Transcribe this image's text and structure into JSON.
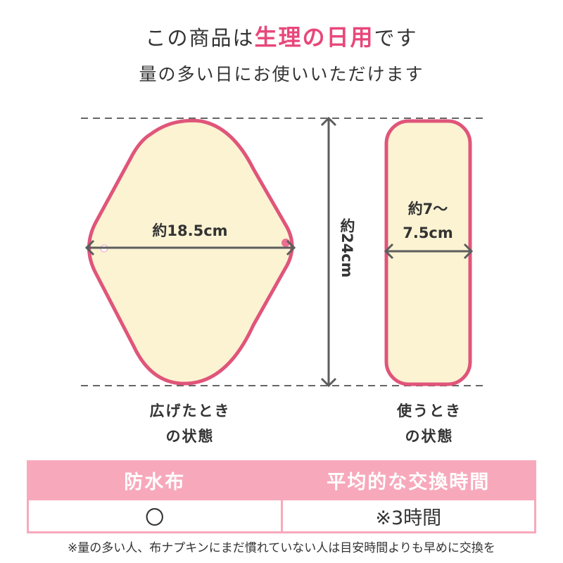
{
  "heading": {
    "prefix": "この商品は",
    "accent": "生理の日用",
    "suffix": "です",
    "accent_color": "#e8477a"
  },
  "subheading": "量の多い日にお使いいただけます",
  "dimensions": {
    "width_open": "約18.5cm",
    "height": "約24cm",
    "width_folded_line1": "約7～",
    "width_folded_line2": "7.5cm"
  },
  "captions": {
    "open_line1": "広げたとき",
    "open_line2": "の状態",
    "folded_line1": "使うとき",
    "folded_line2": "の状態"
  },
  "table": {
    "headers": [
      "防水布",
      "平均的な交換時間"
    ],
    "rows": [
      [
        "〇",
        "※3時間"
      ]
    ],
    "header_color": "#f7a9bb"
  },
  "footnote": "※量の多い人、布ナプキンにまだ慣れていない人は目安時間よりも早めに交換を",
  "colors": {
    "pad_fill": "#fbf3d2",
    "pad_edge": "#e0557a"
  }
}
